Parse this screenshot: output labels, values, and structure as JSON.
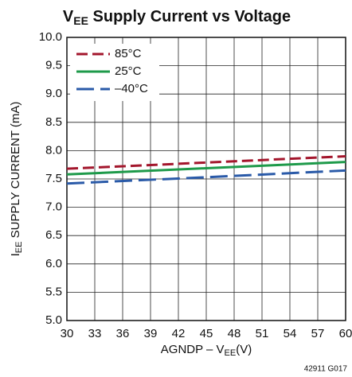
{
  "chart_data": {
    "type": "line",
    "title": [
      "V",
      "EE",
      " Supply Current vs Voltage"
    ],
    "xlabel": [
      "AGNDP – V",
      "EE",
      "(V)"
    ],
    "ylabel": [
      "I",
      "EE",
      " SUPPLY CURRENT (mA)"
    ],
    "annotation": "42911 G017",
    "x": [
      30,
      45,
      60
    ],
    "series": [
      {
        "name": "85°C",
        "color": "#a3162c",
        "dash": "dashed",
        "values": [
          7.68,
          7.79,
          7.9
        ]
      },
      {
        "name": "25°C",
        "color": "#1e9a4a",
        "dash": "solid",
        "values": [
          7.58,
          7.69,
          7.8
        ]
      },
      {
        "name": "–40°C",
        "color": "#2a5aa8",
        "dash": "long-dashed",
        "values": [
          7.42,
          7.53,
          7.65
        ]
      }
    ],
    "xlim": [
      30,
      60
    ],
    "xticks": [
      30,
      33,
      36,
      39,
      42,
      45,
      48,
      51,
      54,
      57,
      60
    ],
    "ylim": [
      5,
      10
    ],
    "yticks": [
      {
        "value": 5,
        "label": "5.0"
      },
      5.5,
      {
        "value": 6,
        "label": "6.0"
      },
      6.5,
      {
        "value": 7,
        "label": "7.0"
      },
      7.5,
      {
        "value": 8,
        "label": "8.0"
      },
      8.5,
      {
        "value": 9,
        "label": "9.0"
      },
      9.5,
      {
        "value": 10,
        "label": "10.0"
      }
    ],
    "grid": true,
    "legend": "upper-left"
  }
}
